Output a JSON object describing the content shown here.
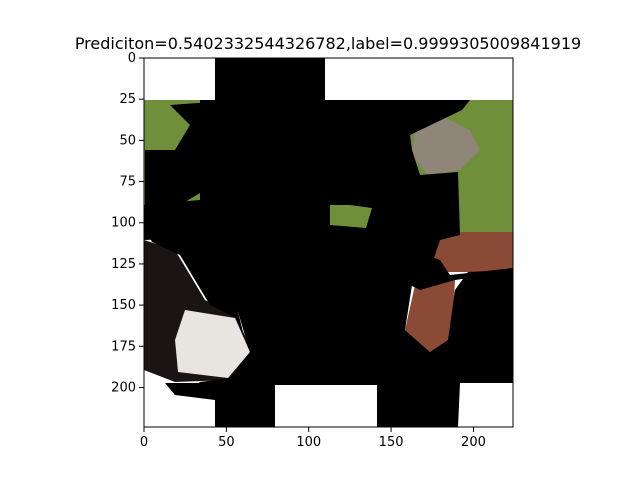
{
  "chart_data": {
    "type": "image",
    "title": "Prediciton=0.5402332544326782,label=0.9999305009841919",
    "xlabel": "",
    "ylabel": "",
    "xlim": [
      0,
      224
    ],
    "ylim": [
      224,
      0
    ],
    "x_ticks": [
      0,
      50,
      100,
      150,
      200
    ],
    "y_ticks": [
      0,
      25,
      50,
      75,
      100,
      125,
      150,
      175,
      200
    ],
    "grid": false,
    "legend": "none",
    "colors": {
      "mask": "#000000",
      "background": "#ffffff",
      "grass": "#6f8f3a",
      "brick": "#8a4a35",
      "cat_fur": "#8f8578",
      "dog_black": "#1a1414",
      "dog_white": "#e8e4e0"
    }
  }
}
